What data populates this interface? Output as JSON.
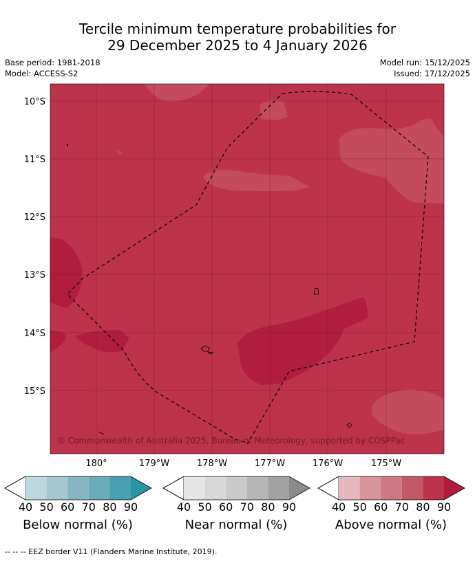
{
  "title_line1": "Tercile minimum temperature probabilities for",
  "title_line2": "29 December 2025 to 4 January 2026",
  "meta_left": [
    "Base period: 1981-2018",
    "Model: ACCESS-S2"
  ],
  "meta_right": [
    "Model run: 15/12/2025",
    "Issued: 17/12/2025"
  ],
  "lat_labels": [
    "10°S",
    "11°S",
    "12°S",
    "13°S",
    "14°S",
    "15°S"
  ],
  "lon_labels": [
    "180°",
    "179°W",
    "178°W",
    "177°W",
    "176°W",
    "175°W"
  ],
  "copyright": "© Commonwealth of Australia 2025, Bureau of Meteorology, supported by COSPPac",
  "colorbars": [
    {
      "label": "Below normal (%)",
      "colors": [
        "#c0d6de",
        "#a5c7cf",
        "#88b7c3",
        "#6babba",
        "#479fb0",
        "#2a93a6"
      ]
    },
    {
      "label": "Near normal (%)",
      "colors": [
        "#e6e6e6",
        "#d8d8d8",
        "#cacaca",
        "#b7b7b7",
        "#a2a2a2",
        "#8b8b8b"
      ]
    },
    {
      "label": "Above normal (%)",
      "colors": [
        "#e4b8be",
        "#d8959d",
        "#cd7882",
        "#c35866",
        "#ba334b",
        "#b01a3c"
      ]
    }
  ],
  "tick_values": [
    "40",
    "50",
    "60",
    "70",
    "80",
    "90"
  ],
  "footer": "-- -- -- EEZ border V11 (Flanders Marine Institute, 2019)."
}
